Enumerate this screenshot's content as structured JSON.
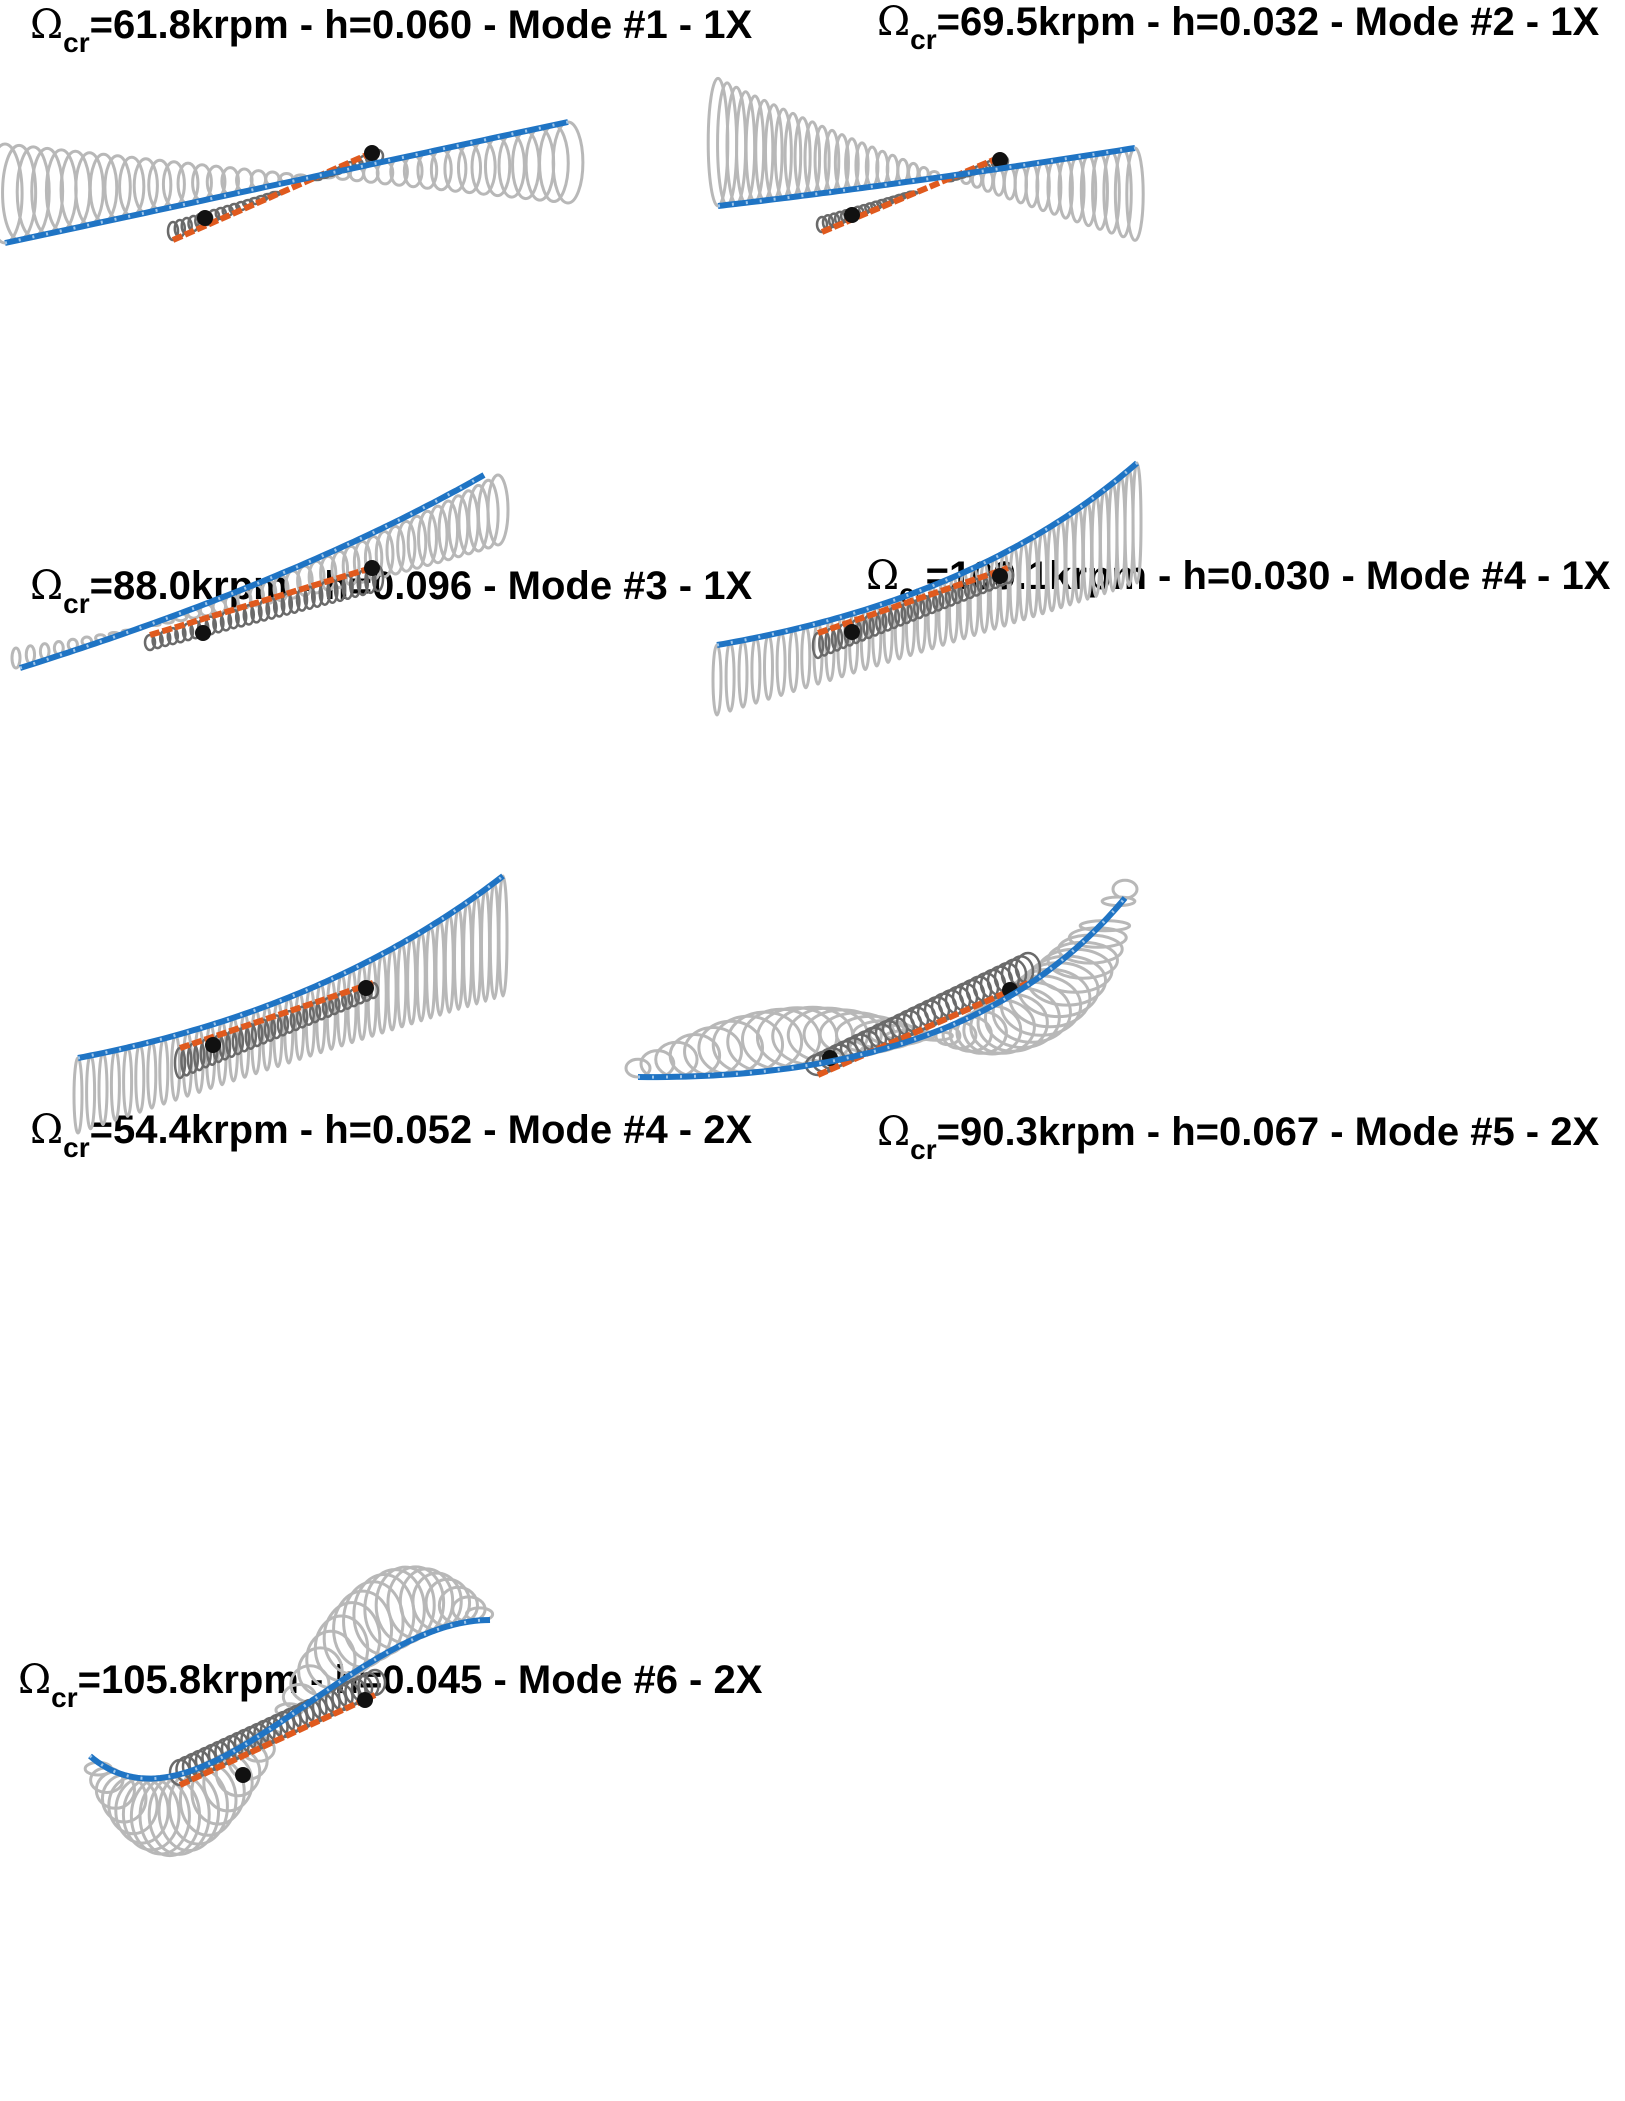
{
  "panels": [
    {
      "symbol": "Ω",
      "subscript": "cr",
      "text": "=61.8krpm - h=0.060 - Mode #1 - 1X"
    },
    {
      "symbol": "Ω",
      "subscript": "cr",
      "text": "=69.5krpm - h=0.032 - Mode #2 - 1X"
    },
    {
      "symbol": "Ω",
      "subscript": "cr",
      "text": "=88.0krpm - h=0.096 - Mode #3 - 1X"
    },
    {
      "symbol": "Ω",
      "subscript": "cr",
      "text": "=109.1krpm - h=0.030 - Mode #4 - 1X"
    },
    {
      "symbol": "Ω",
      "subscript": "cr",
      "text": "=54.4krpm - h=0.052 - Mode #4 - 2X"
    },
    {
      "symbol": "Ω",
      "subscript": "cr",
      "text": "=90.3krpm - h=0.067 - Mode #5 - 2X"
    },
    {
      "symbol": "Ω",
      "subscript": "cr",
      "text": "=105.8krpm - h=0.045 - Mode #6 - 2X"
    }
  ],
  "colors": {
    "shaft": "#1f74c4",
    "shaft_nodes": "#9fc6ea",
    "inner_shaft": "#e05a1e",
    "orbit_outer": "#b8b8b8",
    "orbit_inner": "#6a6a6a",
    "bearing": "#111111"
  }
}
